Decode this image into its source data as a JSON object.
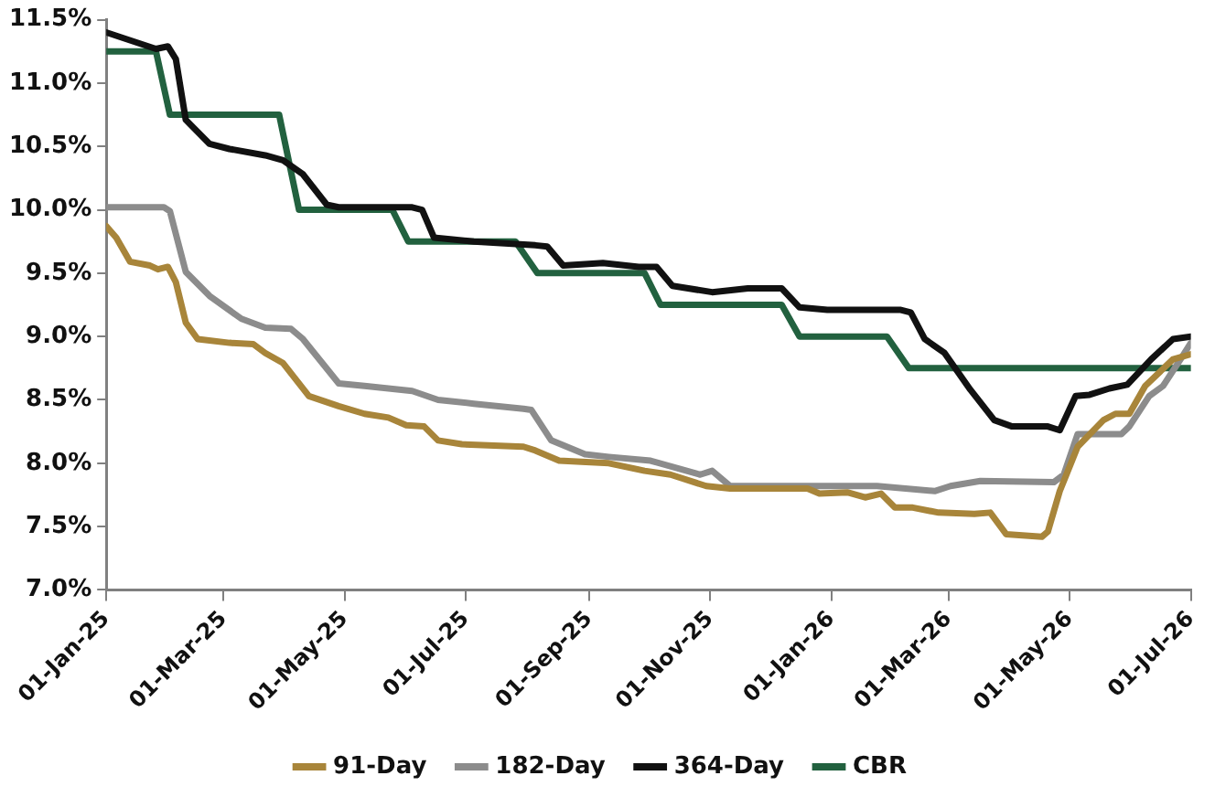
{
  "chart_data": {
    "type": "line",
    "xlim": [
      "2025-01-01",
      "2026-07-01"
    ],
    "xticks": [
      {
        "value": "2025-01-01",
        "label": "01-Jan-25"
      },
      {
        "value": "2025-03-01",
        "label": "01-Mar-25"
      },
      {
        "value": "2025-05-01",
        "label": "01-May-25"
      },
      {
        "value": "2025-07-01",
        "label": "01-Jul-25"
      },
      {
        "value": "2025-09-01",
        "label": "01-Sep-25"
      },
      {
        "value": "2025-11-01",
        "label": "01-Nov-25"
      },
      {
        "value": "2026-01-01",
        "label": "01-Jan-26"
      },
      {
        "value": "2026-03-01",
        "label": "01-Mar-26"
      },
      {
        "value": "2026-05-01",
        "label": "01-May-26"
      },
      {
        "value": "2026-07-01",
        "label": "01-Jul-26"
      }
    ],
    "ylim": [
      7.0,
      11.5
    ],
    "yticks": [
      {
        "value": 7.0,
        "label": "7.0%"
      },
      {
        "value": 7.5,
        "label": "7.5%"
      },
      {
        "value": 8.0,
        "label": "8.0%"
      },
      {
        "value": 8.5,
        "label": "8.5%"
      },
      {
        "value": 9.0,
        "label": "9.0%"
      },
      {
        "value": 9.5,
        "label": "9.5%"
      },
      {
        "value": 10.0,
        "label": "10.0%"
      },
      {
        "value": 10.5,
        "label": "10.5%"
      },
      {
        "value": 11.0,
        "label": "11.0%"
      },
      {
        "value": 11.5,
        "label": "11.5%"
      }
    ],
    "legend": "bottom",
    "marker": "none",
    "line_style": "solid",
    "series": [
      {
        "name": "91-Day",
        "color": "#a8853a",
        "x": [
          "2025-01-01",
          "2025-01-06",
          "2025-01-13",
          "2025-01-23",
          "2025-01-27",
          "2025-02-01",
          "2025-02-05",
          "2025-02-10",
          "2025-02-16",
          "2025-03-04",
          "2025-03-16",
          "2025-03-22",
          "2025-03-31",
          "2025-04-13",
          "2025-04-28",
          "2025-05-11",
          "2025-05-23",
          "2025-06-01",
          "2025-06-10",
          "2025-06-17",
          "2025-06-29",
          "2025-07-30",
          "2025-08-05",
          "2025-08-17",
          "2025-09-11",
          "2025-09-29",
          "2025-10-12",
          "2025-10-30",
          "2025-11-11",
          "2025-12-20",
          "2025-12-26",
          "2026-01-09",
          "2026-01-18",
          "2026-01-26",
          "2026-02-02",
          "2026-02-11",
          "2026-02-24",
          "2026-03-14",
          "2026-03-22",
          "2026-03-30",
          "2026-04-17",
          "2026-04-20",
          "2026-04-26",
          "2026-05-05",
          "2026-05-18",
          "2026-05-24",
          "2026-05-31",
          "2026-06-08",
          "2026-06-22",
          "2026-07-01"
        ],
        "values": [
          9.87,
          9.78,
          9.59,
          9.56,
          9.53,
          9.55,
          9.43,
          9.11,
          8.98,
          8.95,
          8.94,
          8.87,
          8.79,
          8.53,
          8.45,
          8.39,
          8.36,
          8.3,
          8.29,
          8.18,
          8.15,
          8.13,
          8.1,
          8.02,
          8.0,
          7.94,
          7.91,
          7.82,
          7.8,
          7.8,
          7.76,
          7.77,
          7.73,
          7.76,
          7.65,
          7.65,
          7.61,
          7.6,
          7.61,
          7.44,
          7.42,
          7.46,
          7.78,
          8.13,
          8.34,
          8.39,
          8.39,
          8.61,
          8.82,
          8.86
        ]
      },
      {
        "name": "182-Day",
        "color": "#8c8c8c",
        "x": [
          "2025-01-01",
          "2025-01-30",
          "2025-02-02",
          "2025-02-10",
          "2025-02-22",
          "2025-03-10",
          "2025-03-22",
          "2025-04-04",
          "2025-04-10",
          "2025-04-28",
          "2025-05-11",
          "2025-06-04",
          "2025-06-17",
          "2025-07-05",
          "2025-07-30",
          "2025-08-03",
          "2025-08-13",
          "2025-08-30",
          "2025-09-11",
          "2025-10-02",
          "2025-10-27",
          "2025-11-02",
          "2025-11-11",
          "2026-01-24",
          "2026-02-22",
          "2026-03-02",
          "2026-03-17",
          "2026-04-23",
          "2026-04-28",
          "2026-05-05",
          "2026-05-27",
          "2026-05-31",
          "2026-06-10",
          "2026-06-17",
          "2026-06-27",
          "2026-07-01"
        ],
        "values": [
          10.02,
          10.02,
          9.99,
          9.51,
          9.32,
          9.14,
          9.07,
          9.06,
          8.98,
          8.63,
          8.61,
          8.57,
          8.5,
          8.47,
          8.43,
          8.42,
          8.18,
          8.07,
          8.05,
          8.02,
          7.91,
          7.94,
          7.82,
          7.82,
          7.78,
          7.82,
          7.86,
          7.85,
          7.91,
          8.23,
          8.23,
          8.29,
          8.53,
          8.61,
          8.85,
          8.95
        ]
      },
      {
        "name": "364-Day",
        "color": "#111111",
        "x": [
          "2025-01-01",
          "2025-01-26",
          "2025-02-01",
          "2025-02-05",
          "2025-02-10",
          "2025-02-22",
          "2025-03-04",
          "2025-03-22",
          "2025-03-31",
          "2025-04-10",
          "2025-04-22",
          "2025-04-28",
          "2025-06-04",
          "2025-06-09",
          "2025-06-15",
          "2025-07-05",
          "2025-08-05",
          "2025-08-11",
          "2025-08-19",
          "2025-09-08",
          "2025-09-26",
          "2025-10-05",
          "2025-10-13",
          "2025-11-02",
          "2025-11-20",
          "2025-12-07",
          "2025-12-16",
          "2025-12-30",
          "2026-02-05",
          "2026-02-10",
          "2026-02-17",
          "2026-02-27",
          "2026-03-12",
          "2026-03-24",
          "2026-04-02",
          "2026-04-20",
          "2026-04-26",
          "2026-05-04",
          "2026-05-11",
          "2026-05-21",
          "2026-05-30",
          "2026-06-11",
          "2026-06-22",
          "2026-07-01"
        ],
        "values": [
          11.4,
          11.27,
          11.29,
          11.19,
          10.71,
          10.52,
          10.48,
          10.43,
          10.39,
          10.28,
          10.04,
          10.02,
          10.02,
          10.0,
          9.78,
          9.75,
          9.72,
          9.71,
          9.56,
          9.58,
          9.55,
          9.55,
          9.4,
          9.35,
          9.38,
          9.38,
          9.23,
          9.21,
          9.21,
          9.19,
          8.98,
          8.87,
          8.58,
          8.34,
          8.29,
          8.29,
          8.26,
          8.53,
          8.54,
          8.59,
          8.62,
          8.82,
          8.98,
          9.0
        ]
      },
      {
        "name": "CBR",
        "color": "#22613f",
        "x": [
          "2025-01-01",
          "2025-01-26",
          "2025-02-02",
          "2025-03-29",
          "2025-04-08",
          "2025-05-25",
          "2025-06-02",
          "2025-07-26",
          "2025-08-06",
          "2025-09-29",
          "2025-10-07",
          "2025-12-07",
          "2025-12-16",
          "2026-01-29",
          "2026-02-09",
          "2026-07-01"
        ],
        "values": [
          11.25,
          11.25,
          10.75,
          10.75,
          10.0,
          10.0,
          9.75,
          9.75,
          9.5,
          9.5,
          9.25,
          9.25,
          9.0,
          9.0,
          8.75,
          8.75
        ]
      }
    ]
  }
}
